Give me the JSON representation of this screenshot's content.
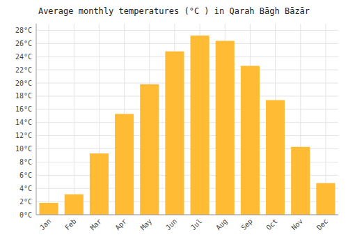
{
  "chart_data": {
    "type": "bar",
    "title": "Average monthly temperatures (°C ) in Qarah Bāgh Bāzār",
    "categories": [
      "Jan",
      "Feb",
      "Mar",
      "Apr",
      "May",
      "Jun",
      "Jul",
      "Aug",
      "Sep",
      "Oct",
      "Nov",
      "Dec"
    ],
    "values": [
      1.8,
      3.1,
      9.3,
      15.3,
      19.8,
      24.8,
      27.2,
      26.4,
      22.6,
      17.4,
      10.3,
      4.8
    ],
    "color": "#FFBB33",
    "ylim": [
      0,
      29
    ],
    "yticks": [
      {
        "value": 0,
        "label": "0°C"
      },
      {
        "value": 2,
        "label": "2°C"
      },
      {
        "value": 4,
        "label": "4°C"
      },
      {
        "value": 6,
        "label": "6°C"
      },
      {
        "value": 8,
        "label": "8°C"
      },
      {
        "value": 10,
        "label": "10°C"
      },
      {
        "value": 12,
        "label": "12°C"
      },
      {
        "value": 14,
        "label": "14°C"
      },
      {
        "value": 16,
        "label": "16°C"
      },
      {
        "value": 18,
        "label": "18°C"
      },
      {
        "value": 20,
        "label": "20°C"
      },
      {
        "value": 22,
        "label": "22°C"
      },
      {
        "value": 24,
        "label": "24°C"
      },
      {
        "value": 26,
        "label": "26°C"
      },
      {
        "value": 28,
        "label": "28°C"
      }
    ],
    "grid": true
  }
}
